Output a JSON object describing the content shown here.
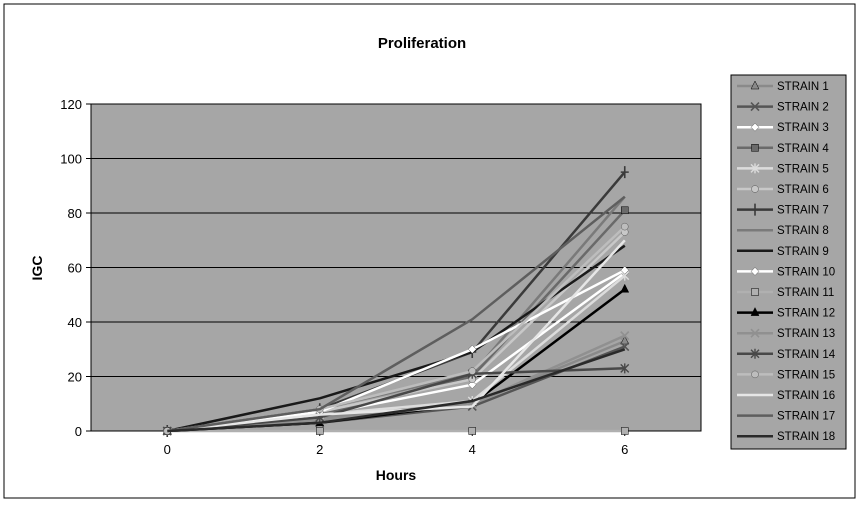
{
  "chart_data": {
    "type": "line",
    "title": "Proliferation",
    "xlabel": "Hours",
    "ylabel": "IGC",
    "x": [
      0,
      2,
      4,
      6
    ],
    "xticks": [
      "0",
      "2",
      "4",
      "6"
    ],
    "yticks": [
      "0",
      "20",
      "40",
      "60",
      "80",
      "100",
      "120"
    ],
    "xlim": [
      -1,
      7
    ],
    "ylim": [
      0,
      120
    ],
    "grid": true,
    "legend_position": "right",
    "colors": {
      "plot_bg": "#a6a6a6",
      "grid": "#000000",
      "frame": "#000000"
    },
    "series": [
      {
        "name": "STRAIN 1",
        "values": [
          0,
          5,
          10,
          33
        ],
        "color": "#8a8a8a",
        "marker": "triangle"
      },
      {
        "name": "STRAIN 2",
        "values": [
          0,
          3,
          9,
          31
        ],
        "color": "#555555",
        "marker": "x"
      },
      {
        "name": "STRAIN 3",
        "values": [
          0,
          6,
          17,
          58
        ],
        "color": "#ffffff",
        "marker": "diamond"
      },
      {
        "name": "STRAIN 4",
        "values": [
          0,
          6,
          20,
          81
        ],
        "color": "#6a6a6a",
        "marker": "square"
      },
      {
        "name": "STRAIN 5",
        "values": [
          0,
          6,
          11,
          57
        ],
        "color": "#dcdcdc",
        "marker": "star"
      },
      {
        "name": "STRAIN 6",
        "values": [
          0,
          7,
          19,
          73
        ],
        "color": "#c8c8c8",
        "marker": "circle"
      },
      {
        "name": "STRAIN 7",
        "values": [
          0,
          8,
          29,
          95
        ],
        "color": "#3a3a3a",
        "marker": "plus"
      },
      {
        "name": "STRAIN 8",
        "values": [
          0,
          8,
          21,
          86
        ],
        "color": "#7a7a7a",
        "marker": "none"
      },
      {
        "name": "STRAIN 9",
        "values": [
          0,
          12,
          29,
          68
        ],
        "color": "#1a1a1a",
        "marker": "none"
      },
      {
        "name": "STRAIN 10",
        "values": [
          0,
          7,
          30,
          59
        ],
        "color": "#ffffff",
        "marker": "diamond"
      },
      {
        "name": "STRAIN 11",
        "values": [
          0,
          0,
          0,
          0
        ],
        "color": "#b0b0b0",
        "marker": "square"
      },
      {
        "name": "STRAIN 12",
        "values": [
          0,
          3,
          10,
          52
        ],
        "color": "#000000",
        "marker": "triangle"
      },
      {
        "name": "STRAIN 13",
        "values": [
          0,
          4,
          10,
          35
        ],
        "color": "#909090",
        "marker": "x"
      },
      {
        "name": "STRAIN 14",
        "values": [
          0,
          5,
          21,
          23
        ],
        "color": "#484848",
        "marker": "star"
      },
      {
        "name": "STRAIN 15",
        "values": [
          0,
          8,
          22,
          75
        ],
        "color": "#bdbdbd",
        "marker": "circle"
      },
      {
        "name": "STRAIN 16",
        "values": [
          0,
          6,
          9,
          70
        ],
        "color": "#e6e6e6",
        "marker": "none"
      },
      {
        "name": "STRAIN 17",
        "values": [
          0,
          8,
          41,
          86
        ],
        "color": "#5e5e5e",
        "marker": "none"
      },
      {
        "name": "STRAIN 18",
        "values": [
          0,
          3,
          11,
          30
        ],
        "color": "#2a2a2a",
        "marker": "none"
      }
    ]
  }
}
